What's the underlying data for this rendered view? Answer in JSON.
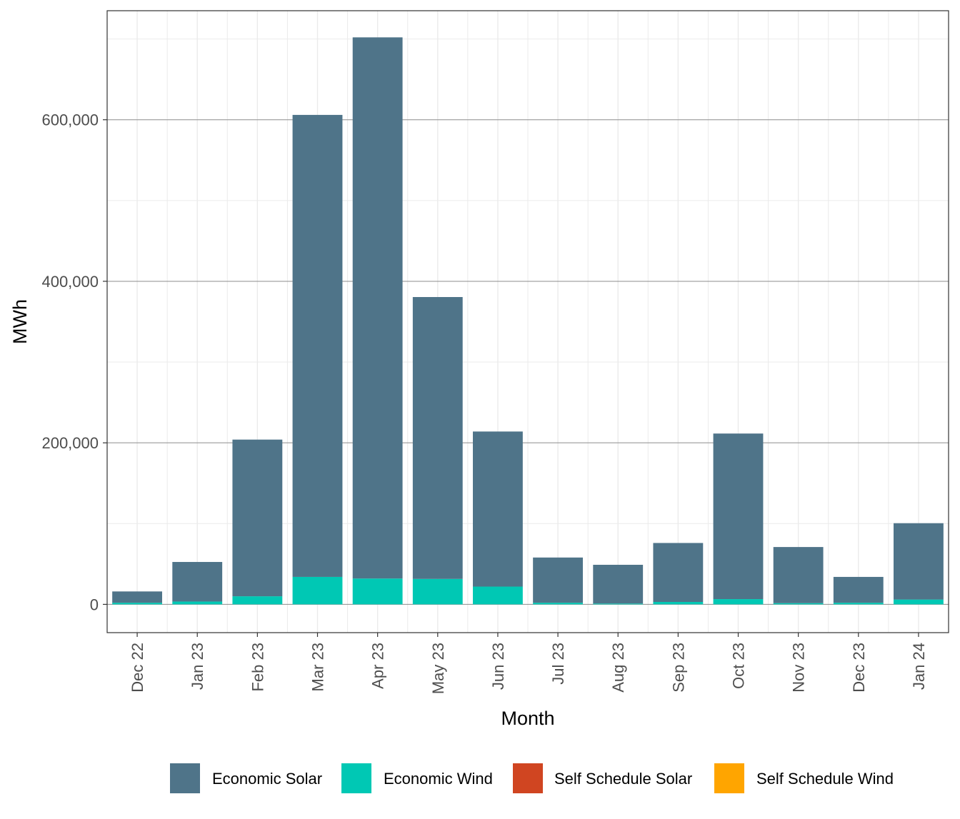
{
  "chart_data": {
    "type": "bar",
    "stacked": true,
    "title": "",
    "xlabel": "Month",
    "ylabel": "MWh",
    "ylim": [
      -35000,
      735000
    ],
    "yticks": [
      0,
      200000,
      400000,
      600000
    ],
    "ytick_labels": [
      "0",
      "200,000",
      "400,000",
      "600,000"
    ],
    "categories": [
      "Dec 22",
      "Jan 23",
      "Feb 23",
      "Mar 23",
      "Apr 23",
      "May 23",
      "Jun 23",
      "Jul 23",
      "Aug 23",
      "Sep 23",
      "Oct 23",
      "Nov 23",
      "Dec 23",
      "Jan 24"
    ],
    "series": [
      {
        "name": "Self Schedule Wind",
        "color": "#FFA500",
        "values": [
          0,
          0,
          0,
          0,
          0,
          0,
          0,
          0,
          0,
          0,
          0,
          0,
          0,
          0
        ]
      },
      {
        "name": "Self Schedule Solar",
        "color": "#D04521",
        "values": [
          0,
          0,
          0,
          0,
          0,
          0,
          0,
          0,
          0,
          0,
          0,
          0,
          0,
          0
        ]
      },
      {
        "name": "Economic Wind",
        "color": "#00C8B4",
        "values": [
          2000,
          3500,
          10000,
          34000,
          32000,
          31500,
          22000,
          2000,
          1000,
          3000,
          6500,
          1500,
          2000,
          6000
        ]
      },
      {
        "name": "Economic Solar",
        "color": "#4F7489",
        "values": [
          14000,
          49000,
          194000,
          572000,
          670000,
          349000,
          192000,
          56000,
          48000,
          73000,
          205000,
          69500,
          32000,
          94500
        ]
      }
    ],
    "legend": {
      "position": "bottom",
      "items": [
        "Economic Solar",
        "Economic Wind",
        "Self Schedule Solar",
        "Self Schedule Wind"
      ]
    },
    "grid": true
  }
}
